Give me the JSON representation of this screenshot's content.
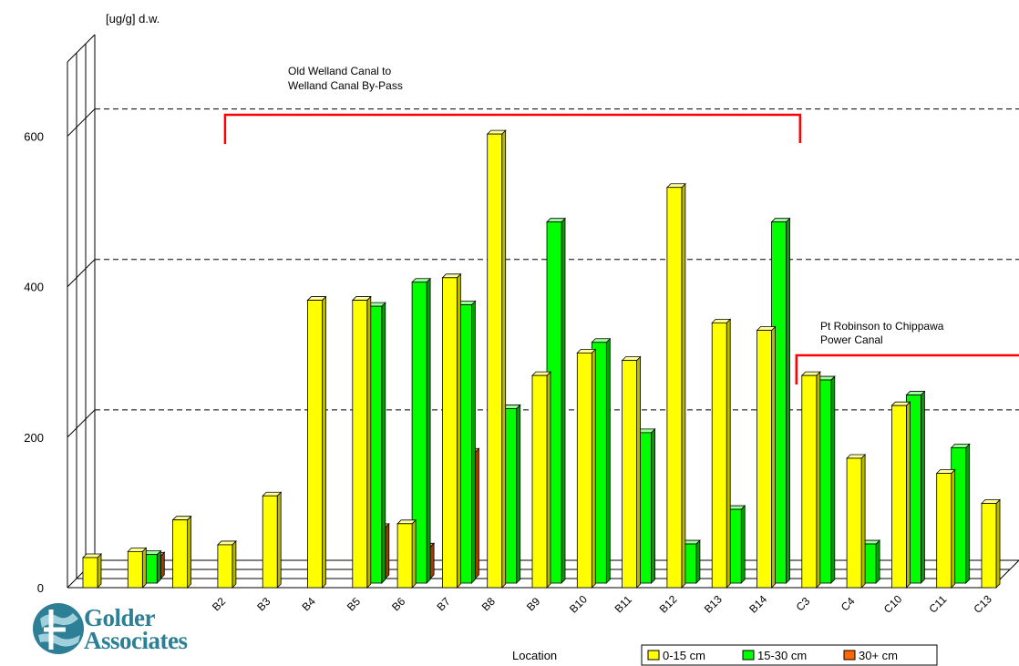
{
  "chart_data": {
    "type": "bar",
    "y_unit_label": "[ug/g] d.w.",
    "xlabel": "Location",
    "ylim": [
      0,
      700
    ],
    "yticks": [
      0,
      200,
      400,
      600
    ],
    "grid": "dashed horizontal",
    "categories": [
      "",
      "",
      "",
      "B2",
      "B3",
      "B4",
      "B5",
      "B6",
      "B7",
      "B8",
      "B9",
      "B10",
      "B11",
      "B12",
      "B13",
      "B14",
      "C3",
      "C4",
      "C10",
      "C11",
      "C13"
    ],
    "series": [
      {
        "name": "0-15 cm",
        "color": "#ffff00",
        "values": [
          40,
          48,
          90,
          57,
          122,
          382,
          382,
          85,
          412,
          603,
          282,
          312,
          302,
          532,
          352,
          342,
          282,
          172,
          242,
          152,
          112
        ]
      },
      {
        "name": "15-30 cm",
        "color": "#00ff00",
        "values": [
          null,
          38,
          null,
          null,
          null,
          null,
          368,
          400,
          370,
          232,
          480,
          320,
          200,
          52,
          98,
          480,
          270,
          52,
          250,
          180,
          null
        ]
      },
      {
        "name": "30+ cm",
        "color": "#ff6600",
        "values": [
          null,
          30,
          null,
          null,
          null,
          null,
          68,
          42,
          168,
          null,
          null,
          null,
          null,
          null,
          null,
          null,
          null,
          null,
          null,
          null,
          null
        ]
      }
    ],
    "annotations": [
      {
        "text_lines": [
          "Old Welland Canal to",
          "Welland Canal By-Pass"
        ],
        "from": "B2",
        "to": "C3"
      },
      {
        "text_lines": [
          "Pt Robinson to Chippawa",
          "Power Canal"
        ],
        "from": "C3",
        "to": "C13"
      }
    ],
    "legend_position": "bottom-right"
  },
  "logo": {
    "line1": "Golder",
    "line2": "Associates"
  },
  "colors": {
    "bracket": "#ff0000",
    "logo": "#2d7f95"
  }
}
